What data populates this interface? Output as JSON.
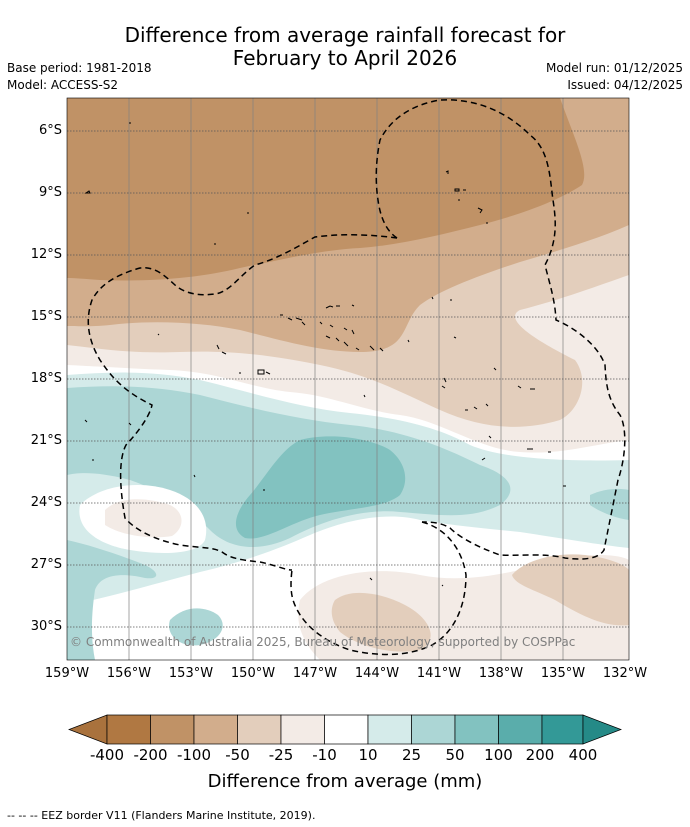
{
  "title": {
    "line1": "Difference from average rainfall forecast for",
    "line2": "February to April 2026"
  },
  "meta": {
    "base_period": "Base period: 1981-2018",
    "model": "Model: ACCESS-S2",
    "model_run": "Model run: 01/12/2025",
    "issued": "Issued: 04/12/2025"
  },
  "axes": {
    "latitudes": [
      "6°S",
      "9°S",
      "12°S",
      "15°S",
      "18°S",
      "21°S",
      "24°S",
      "27°S",
      "30°S"
    ],
    "longitudes": [
      "159°W",
      "156°W",
      "153°W",
      "150°W",
      "147°W",
      "144°W",
      "141°W",
      "138°W",
      "135°W",
      "132°W"
    ]
  },
  "copyright": "© Commonwealth of Australia 2025, Bureau of Meteorology, supported by COSPPac",
  "colorbar": {
    "ticks": [
      "-400",
      "-200",
      "-100",
      "-50",
      "-25",
      "-10",
      "10",
      "25",
      "50",
      "100",
      "200",
      "400"
    ],
    "label": "Difference from average (mm)",
    "colors": {
      "under": "#a9723d",
      "bins": [
        "#b07842",
        "#c09266",
        "#d2ad8c",
        "#e3cebc",
        "#f3ebe6",
        "#ffffff",
        "#d5ebea",
        "#acd6d5",
        "#82c2c0",
        "#5aadab",
        "#339997"
      ],
      "over": "#258a87"
    }
  },
  "footnote": "-- -- -- EEZ border V11 (Flanders Marine Institute, 2019)."
}
